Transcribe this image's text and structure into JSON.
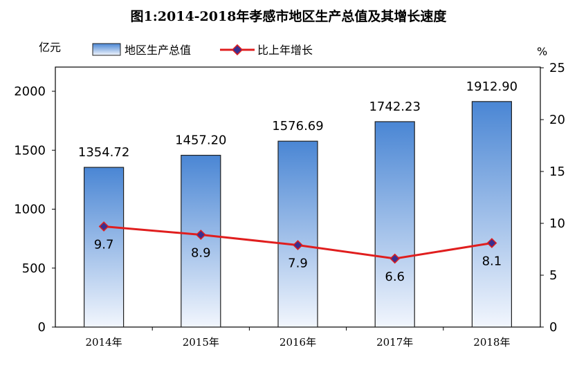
{
  "colors": {
    "bar_top": "#4a86d4",
    "bar_bottom": "#f2f6fd",
    "bar_stroke": "#1f1f1f",
    "line": "#e01e1e",
    "marker": "#3a2f8f",
    "axis": "#000000"
  },
  "chart_data": {
    "type": "bar",
    "title": "图1:2014-2018年孝感市地区生产总值及其增长速度",
    "categories": [
      "2014年",
      "2015年",
      "2016年",
      "2017年",
      "2018年"
    ],
    "y_left_unit": "亿元",
    "y_right_unit": "%",
    "y_left_ticks": [
      "0",
      "500",
      "1000",
      "1500",
      "2000"
    ],
    "y_right_ticks": [
      "0",
      "5",
      "10",
      "15",
      "20",
      "25"
    ],
    "ylim_left": [
      0,
      2200
    ],
    "ylim_right": [
      0,
      25
    ],
    "grid": false,
    "legend_position": "top",
    "series": [
      {
        "name": "地区生产总值",
        "type": "bar",
        "axis": "left",
        "values": [
          1354.72,
          1457.2,
          1576.69,
          1742.23,
          1912.9
        ],
        "labels": [
          "1354.72",
          "1457.20",
          "1576.69",
          "1742.23",
          "1912.90"
        ]
      },
      {
        "name": "比上年增长",
        "type": "line",
        "axis": "right",
        "values": [
          9.7,
          8.9,
          7.9,
          6.6,
          8.1
        ],
        "labels": [
          "9.7",
          "8.9",
          "7.9",
          "6.6",
          "8.1"
        ]
      }
    ]
  }
}
